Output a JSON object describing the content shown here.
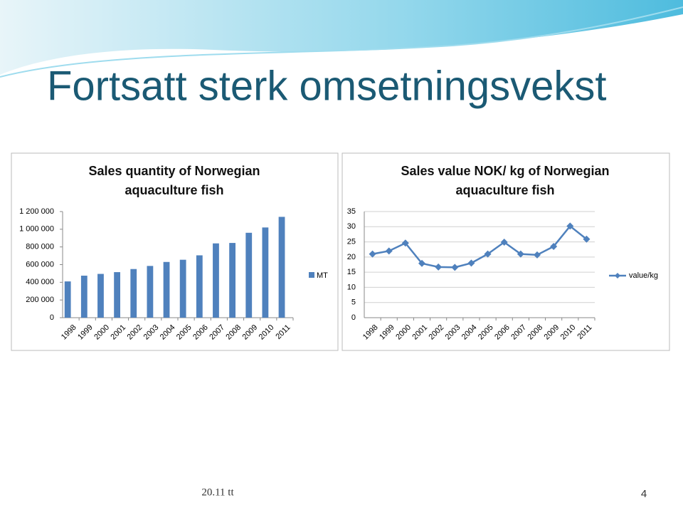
{
  "title": "Fortsatt sterk omsetningsvekst",
  "footer": "20.11 tt",
  "page_number": "4",
  "chart_data": [
    {
      "type": "bar",
      "title": "Sales quantity of Norwegian aquaculture fish",
      "categories": [
        "1998",
        "1999",
        "2000",
        "2001",
        "2002",
        "2003",
        "2004",
        "2005",
        "2006",
        "2007",
        "2008",
        "2009",
        "2010",
        "2011"
      ],
      "series": [
        {
          "name": "MT",
          "color": "#4f81bd",
          "values": [
            410000,
            475000,
            495000,
            515000,
            550000,
            585000,
            630000,
            655000,
            705000,
            840000,
            845000,
            960000,
            1020000,
            1140000
          ]
        }
      ],
      "ylim": [
        0,
        1200000
      ],
      "yticks": [
        0,
        {
          "value": 200000,
          "label": "200 000"
        },
        {
          "value": 400000,
          "label": "400 000"
        },
        {
          "value": 600000,
          "label": "600 000"
        },
        {
          "value": 800000,
          "label": "800 000"
        },
        {
          "value": 1000000,
          "label": "1 000 000"
        },
        {
          "value": 1200000,
          "label": "1 200 000"
        }
      ],
      "grid": false,
      "legend": "right"
    },
    {
      "type": "line",
      "title": "Sales value NOK/ kg of Norwegian aquaculture fish",
      "categories": [
        "1998",
        "1999",
        "2000",
        "2001",
        "2002",
        "2003",
        "2004",
        "2005",
        "2006",
        "2007",
        "2008",
        "2009",
        "2010",
        "2011"
      ],
      "series": [
        {
          "name": "value/kg",
          "color": "#4f81bd",
          "values": [
            21,
            22,
            24.6,
            17.9,
            16.7,
            16.6,
            18,
            21,
            24.9,
            21,
            20.7,
            23.5,
            30.2,
            25.9
          ]
        }
      ],
      "ylim": [
        0,
        35
      ],
      "yticks": [
        0,
        5,
        10,
        15,
        20,
        25,
        30,
        35
      ],
      "grid": true,
      "legend": "right"
    }
  ]
}
